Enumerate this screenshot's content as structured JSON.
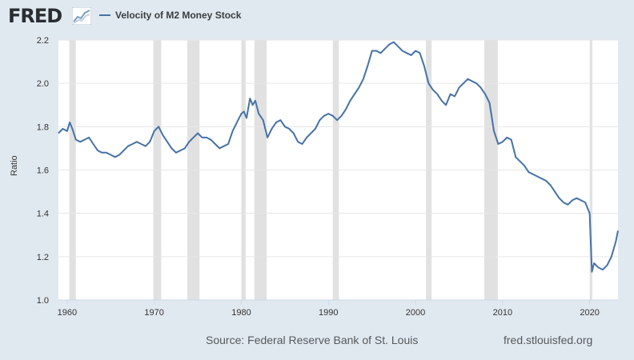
{
  "header": {
    "logo_text": "FRED",
    "logo_icon": "line-chart-icon",
    "legend_label": "Velocity of M2 Money Stock"
  },
  "footer": {
    "source": "Source: Federal Reserve Bank of St. Louis",
    "url": "fred.stlouisfed.org"
  },
  "colors": {
    "series": "#4572a7",
    "recession": "#e1e1e1",
    "background": "#e1e9f0"
  },
  "chart_data": {
    "type": "line",
    "title": "Velocity of M2 Money Stock",
    "xlabel": "",
    "ylabel": "Ratio",
    "xlim": [
      1959.0,
      2023.25
    ],
    "ylim": [
      1.0,
      2.2
    ],
    "x_ticks": [
      1960,
      1970,
      1980,
      1990,
      2000,
      2010,
      2020
    ],
    "y_ticks": [
      1.0,
      1.2,
      1.4,
      1.6,
      1.8,
      2.0,
      2.2
    ],
    "x_tick_labels": [
      "1960",
      "1970",
      "1980",
      "1990",
      "2000",
      "2010",
      "2020"
    ],
    "y_tick_labels": [
      "1.0",
      "1.2",
      "1.4",
      "1.6",
      "1.8",
      "2.0",
      "2.2"
    ],
    "recessions": [
      [
        1960.25,
        1961.0
      ],
      [
        1969.9,
        1970.8
      ],
      [
        1973.8,
        1975.2
      ],
      [
        1980.0,
        1980.5
      ],
      [
        1981.5,
        1982.9
      ],
      [
        1990.5,
        1991.2
      ],
      [
        2001.2,
        2001.85
      ],
      [
        2007.9,
        2009.45
      ],
      [
        2020.0,
        2020.3
      ]
    ],
    "series": [
      {
        "name": "Velocity of M2 Money Stock",
        "x": [
          1959.0,
          1959.5,
          1960.0,
          1960.3,
          1960.6,
          1961.0,
          1961.5,
          1962.0,
          1962.5,
          1963.0,
          1963.5,
          1964.0,
          1964.5,
          1965.0,
          1965.5,
          1966.0,
          1966.5,
          1967.0,
          1967.5,
          1968.0,
          1968.5,
          1969.0,
          1969.5,
          1970.0,
          1970.5,
          1971.0,
          1971.5,
          1972.0,
          1972.5,
          1973.0,
          1973.5,
          1974.0,
          1974.5,
          1975.0,
          1975.5,
          1976.0,
          1976.5,
          1977.0,
          1977.5,
          1978.0,
          1978.5,
          1979.0,
          1979.5,
          1980.0,
          1980.3,
          1980.6,
          1981.0,
          1981.3,
          1981.6,
          1982.0,
          1982.5,
          1983.0,
          1983.5,
          1984.0,
          1984.5,
          1985.0,
          1985.5,
          1986.0,
          1986.5,
          1987.0,
          1987.5,
          1988.0,
          1988.5,
          1989.0,
          1989.5,
          1990.0,
          1990.5,
          1991.0,
          1991.5,
          1992.0,
          1992.5,
          1993.0,
          1993.5,
          1994.0,
          1994.5,
          1995.0,
          1995.5,
          1996.0,
          1996.5,
          1997.0,
          1997.5,
          1998.0,
          1998.5,
          1999.0,
          1999.5,
          2000.0,
          2000.5,
          2001.0,
          2001.5,
          2002.0,
          2002.5,
          2003.0,
          2003.5,
          2004.0,
          2004.5,
          2005.0,
          2005.5,
          2006.0,
          2006.5,
          2007.0,
          2007.5,
          2008.0,
          2008.5,
          2009.0,
          2009.5,
          2010.0,
          2010.5,
          2011.0,
          2011.5,
          2012.0,
          2012.5,
          2013.0,
          2013.5,
          2014.0,
          2014.5,
          2015.0,
          2015.5,
          2016.0,
          2016.5,
          2017.0,
          2017.5,
          2018.0,
          2018.5,
          2019.0,
          2019.5,
          2020.0,
          2020.25,
          2020.5,
          2021.0,
          2021.5,
          2022.0,
          2022.5,
          2023.0,
          2023.25
        ],
        "values": [
          1.77,
          1.79,
          1.78,
          1.82,
          1.79,
          1.74,
          1.73,
          1.74,
          1.75,
          1.72,
          1.69,
          1.68,
          1.68,
          1.67,
          1.66,
          1.67,
          1.69,
          1.71,
          1.72,
          1.73,
          1.72,
          1.71,
          1.73,
          1.78,
          1.8,
          1.76,
          1.73,
          1.7,
          1.68,
          1.69,
          1.7,
          1.73,
          1.75,
          1.77,
          1.75,
          1.75,
          1.74,
          1.72,
          1.7,
          1.71,
          1.72,
          1.78,
          1.82,
          1.86,
          1.87,
          1.84,
          1.93,
          1.9,
          1.92,
          1.86,
          1.83,
          1.75,
          1.79,
          1.82,
          1.83,
          1.8,
          1.79,
          1.77,
          1.73,
          1.72,
          1.75,
          1.77,
          1.79,
          1.83,
          1.85,
          1.86,
          1.85,
          1.83,
          1.85,
          1.88,
          1.92,
          1.95,
          1.98,
          2.02,
          2.08,
          2.15,
          2.15,
          2.14,
          2.16,
          2.18,
          2.19,
          2.17,
          2.15,
          2.14,
          2.13,
          2.15,
          2.14,
          2.08,
          2.0,
          1.97,
          1.95,
          1.92,
          1.9,
          1.95,
          1.94,
          1.98,
          2.0,
          2.02,
          2.01,
          2.0,
          1.98,
          1.95,
          1.91,
          1.78,
          1.72,
          1.73,
          1.75,
          1.74,
          1.66,
          1.64,
          1.62,
          1.59,
          1.58,
          1.57,
          1.56,
          1.55,
          1.53,
          1.5,
          1.47,
          1.45,
          1.44,
          1.46,
          1.47,
          1.46,
          1.45,
          1.4,
          1.13,
          1.17,
          1.15,
          1.14,
          1.16,
          1.2,
          1.27,
          1.32
        ]
      }
    ]
  }
}
